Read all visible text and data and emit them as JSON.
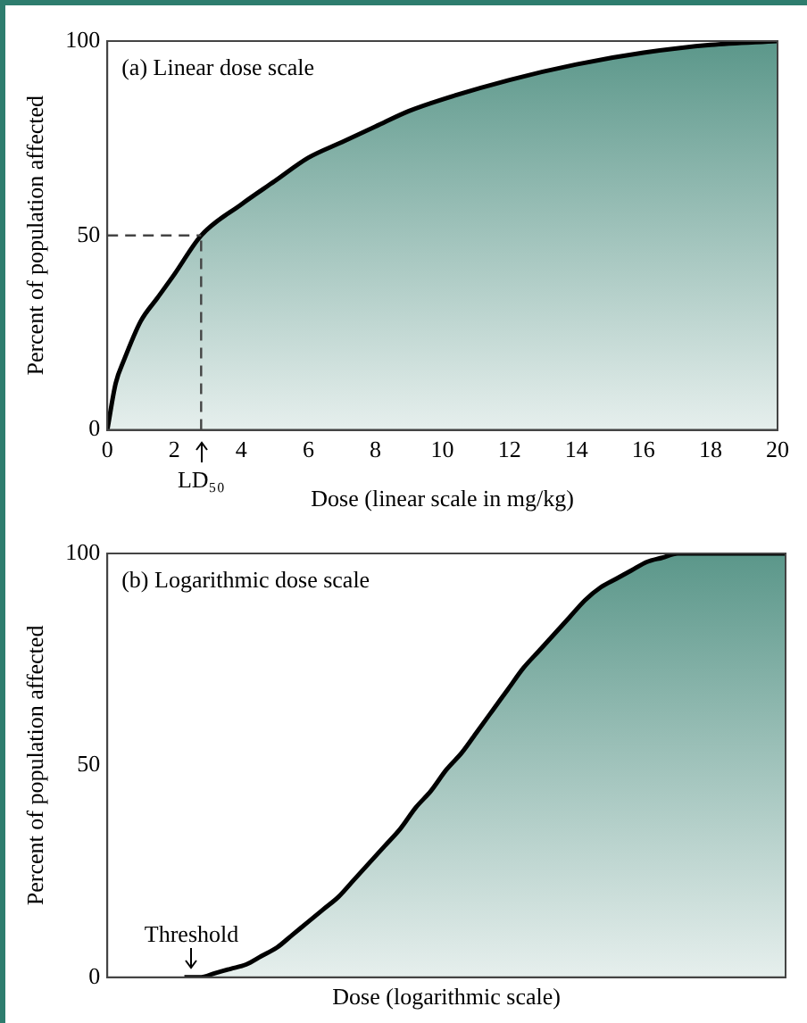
{
  "chart_data": [
    {
      "type": "area",
      "title": "(a) Linear dose scale",
      "xlabel": "Dose (linear scale in mg/kg)",
      "ylabel": "Percent of population affected",
      "x": [
        0,
        0.25,
        0.5,
        1,
        1.5,
        2,
        2.8,
        4,
        5,
        6,
        7,
        8,
        9,
        10,
        12,
        14,
        16,
        18,
        20
      ],
      "values": [
        0,
        12,
        18,
        28,
        34,
        40,
        50,
        58,
        64,
        70,
        74,
        78,
        82,
        85,
        90,
        94,
        97,
        99,
        100
      ],
      "color": "#5b978a",
      "ref_lines": [
        {
          "axis": "y",
          "value": 50,
          "color": "#444444",
          "line_style": "dashed"
        },
        {
          "axis": "x",
          "value": 2.8,
          "color": "#444444",
          "line_style": "dashed"
        }
      ],
      "xlim": [
        0,
        20
      ],
      "xticks": [
        0,
        2,
        4,
        6,
        8,
        10,
        12,
        14,
        16,
        18,
        20
      ],
      "ylim": [
        0,
        100
      ],
      "yticks": [
        0,
        50,
        100
      ],
      "annotations": [
        {
          "text": "LD₅₀",
          "x": 2.8,
          "y": 0
        }
      ]
    },
    {
      "type": "area",
      "title": "(b) Logarithmic dose scale",
      "xlabel": "Dose (logarithmic scale)",
      "ylabel": "Percent of population affected",
      "categories": [
        null,
        null,
        null,
        null,
        null,
        null,
        null,
        null,
        null,
        null,
        null,
        null,
        null,
        null,
        null,
        null,
        null,
        null,
        null,
        null,
        null,
        null,
        null,
        null,
        null,
        null,
        null,
        null,
        null,
        null,
        null,
        null,
        null,
        null,
        null,
        null,
        null,
        null,
        null,
        null,
        null,
        null,
        null,
        null,
        null
      ],
      "values": [
        null,
        null,
        null,
        null,
        null,
        0,
        0,
        1,
        2,
        3,
        5,
        7,
        10,
        13,
        16,
        19,
        23,
        27,
        31,
        35,
        40,
        44,
        49,
        53,
        58,
        63,
        68,
        73,
        77,
        81,
        85,
        89,
        92,
        94,
        96,
        98,
        99,
        100,
        100,
        100,
        100,
        100,
        100,
        100,
        100
      ],
      "color": "#5b978a",
      "ylim": [
        0,
        100
      ],
      "yticks": [
        0,
        50,
        100
      ],
      "tick_labels": "y",
      "annotations": [
        "Threshold"
      ]
    }
  ]
}
